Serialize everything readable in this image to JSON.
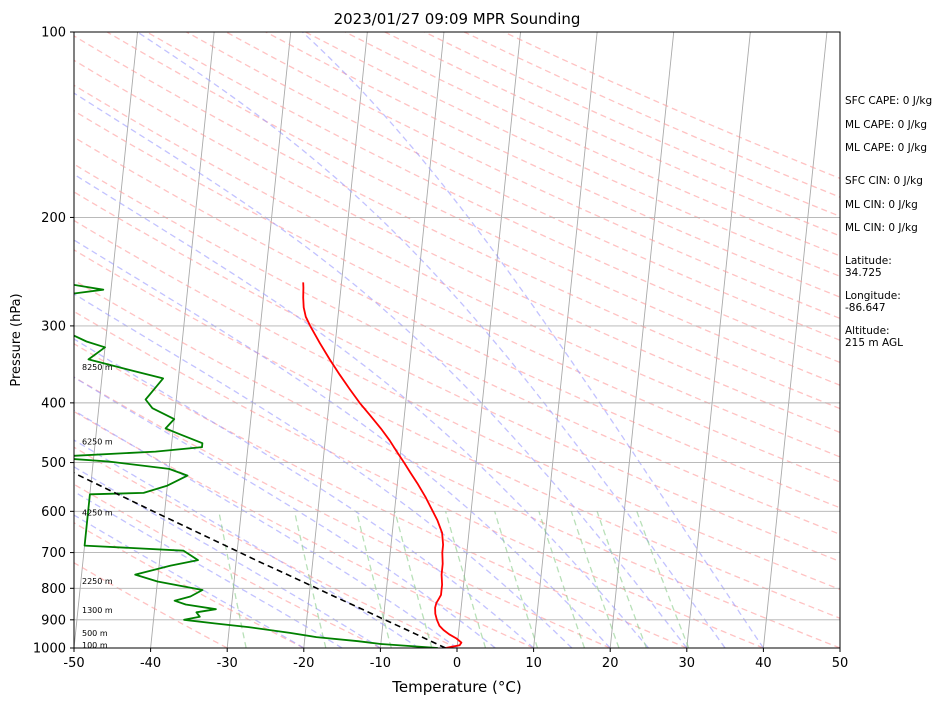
{
  "chart_data": {
    "type": "skew-t",
    "title": "2023/01/27 09:09 MPR Sounding",
    "xlabel": "Temperature (°C)",
    "ylabel": "Pressure (hPa)",
    "xlim": [
      -50,
      50
    ],
    "ylim": [
      1000,
      100
    ],
    "y_scale": "log",
    "x_ticks": [
      -50,
      -40,
      -30,
      -20,
      -10,
      0,
      10,
      20,
      30,
      40,
      50
    ],
    "y_ticks": [
      1000,
      900,
      800,
      700,
      600,
      500,
      400,
      300,
      200,
      100
    ],
    "grid": true,
    "background_lines": {
      "isotherms_color": "#aaaaaa",
      "dry_adiabats_color": "#ff9999",
      "moist_adiabats_color": "#9999ff",
      "mixing_ratio_color": "#88cc88"
    },
    "series": [
      {
        "key": "temperature",
        "color": "#ff0000",
        "points": [
          [
            1000,
            -1.5
          ],
          [
            990,
            0.3
          ],
          [
            980,
            0.5
          ],
          [
            965,
            -0.2
          ],
          [
            950,
            -1.2
          ],
          [
            935,
            -2.0
          ],
          [
            920,
            -2.6
          ],
          [
            900,
            -3.0
          ],
          [
            880,
            -3.3
          ],
          [
            860,
            -3.4
          ],
          [
            845,
            -3.3
          ],
          [
            830,
            -3.0
          ],
          [
            820,
            -2.8
          ],
          [
            805,
            -2.8
          ],
          [
            790,
            -2.8
          ],
          [
            760,
            -3.0
          ],
          [
            730,
            -3.0
          ],
          [
            700,
            -3.2
          ],
          [
            680,
            -3.2
          ],
          [
            650,
            -3.5
          ],
          [
            620,
            -4.3
          ],
          [
            600,
            -5.0
          ],
          [
            570,
            -6.1
          ],
          [
            540,
            -7.4
          ],
          [
            520,
            -8.4
          ],
          [
            500,
            -9.4
          ],
          [
            480,
            -10.5
          ],
          [
            460,
            -11.6
          ],
          [
            440,
            -12.9
          ],
          [
            420,
            -14.4
          ],
          [
            400,
            -16.0
          ],
          [
            380,
            -17.5
          ],
          [
            360,
            -19.0
          ],
          [
            340,
            -20.5
          ],
          [
            320,
            -22.0
          ],
          [
            300,
            -23.5
          ],
          [
            290,
            -24.2
          ],
          [
            280,
            -24.6
          ],
          [
            270,
            -24.8
          ],
          [
            260,
            -24.9
          ],
          [
            255,
            -25.0
          ]
        ]
      },
      {
        "key": "dewpoint",
        "color": "#008000",
        "points": [
          [
            1000,
            -2.5
          ],
          [
            993,
            -6.0
          ],
          [
            985,
            -10.0
          ],
          [
            975,
            -13.0
          ],
          [
            960,
            -18.5
          ],
          [
            945,
            -22.0
          ],
          [
            925,
            -27.5
          ],
          [
            912,
            -32.0
          ],
          [
            900,
            -36.0
          ],
          [
            890,
            -34.0
          ],
          [
            875,
            -34.5
          ],
          [
            865,
            -32.0
          ],
          [
            850,
            -36.0
          ],
          [
            838,
            -37.5
          ],
          [
            825,
            -35.5
          ],
          [
            805,
            -34.0
          ],
          [
            780,
            -40.0
          ],
          [
            760,
            -43.0
          ],
          [
            735,
            -38.5
          ],
          [
            720,
            -35.0
          ],
          [
            695,
            -37.0
          ],
          [
            682,
            -50.0
          ],
          [
            563,
            -50.0
          ],
          [
            560,
            -43.0
          ],
          [
            545,
            -40.0
          ],
          [
            525,
            -37.5
          ],
          [
            512,
            -40.0
          ],
          [
            498,
            -48.0
          ],
          [
            493,
            -53.0
          ],
          [
            490,
            -56.0
          ],
          [
            480,
            -42.0
          ],
          [
            472,
            -36.0
          ],
          [
            465,
            -36.0
          ],
          [
            450,
            -39.0
          ],
          [
            440,
            -41.0
          ],
          [
            425,
            -40.0
          ],
          [
            408,
            -43.0
          ],
          [
            395,
            -44.0
          ],
          [
            380,
            -43.0
          ],
          [
            365,
            -42.0
          ],
          [
            355,
            -46.0
          ],
          [
            340,
            -52.0
          ],
          [
            325,
            -50.0
          ],
          [
            318,
            -52.5
          ],
          [
            308,
            -55.0
          ],
          [
            300,
            -57.0
          ],
          [
            295,
            -60.0
          ],
          [
            285,
            -55.0
          ],
          [
            275,
            -55.0
          ],
          [
            268,
            -57.0
          ],
          [
            262,
            -51.0
          ],
          [
            256,
            -56.0
          ]
        ]
      },
      {
        "key": "parcel",
        "color": "#000000",
        "dashed": true,
        "points": [
          [
            1000,
            -1.5
          ],
          [
            975,
            -3.5
          ],
          [
            950,
            -5.5
          ],
          [
            925,
            -7.6
          ],
          [
            900,
            -9.8
          ],
          [
            875,
            -12.0
          ],
          [
            850,
            -14.3
          ],
          [
            825,
            -16.7
          ],
          [
            800,
            -19.1
          ],
          [
            775,
            -21.6
          ],
          [
            750,
            -24.2
          ],
          [
            725,
            -26.9
          ],
          [
            700,
            -29.6
          ],
          [
            650,
            -35.3
          ],
          [
            600,
            -41.5
          ],
          [
            550,
            -48.1
          ],
          [
            500,
            -55.3
          ],
          [
            450,
            -63.1
          ],
          [
            400,
            -71.7
          ],
          [
            350,
            -81.3
          ],
          [
            310,
            -90.0
          ]
        ]
      }
    ],
    "height_labels": [
      {
        "text": "100 m",
        "p": 988
      },
      {
        "text": "500 m",
        "p": 945
      },
      {
        "text": "1300 m",
        "p": 868
      },
      {
        "text": "2250 m",
        "p": 778
      },
      {
        "text": "4250 m",
        "p": 603
      },
      {
        "text": "6250 m",
        "p": 462
      },
      {
        "text": "8250 m",
        "p": 350
      }
    ],
    "annotations": [
      "SFC CAPE: 0 J/kg",
      "ML CAPE: 0 J/kg",
      "ML CAPE: 0 J/kg",
      "SFC CIN: 0 J/kg",
      "ML CIN: 0 J/kg",
      "ML CIN: 0 J/kg",
      "Latitude:",
      "34.725",
      "Longitude:",
      "-86.647",
      "Altitude:",
      "215 m AGL"
    ]
  }
}
